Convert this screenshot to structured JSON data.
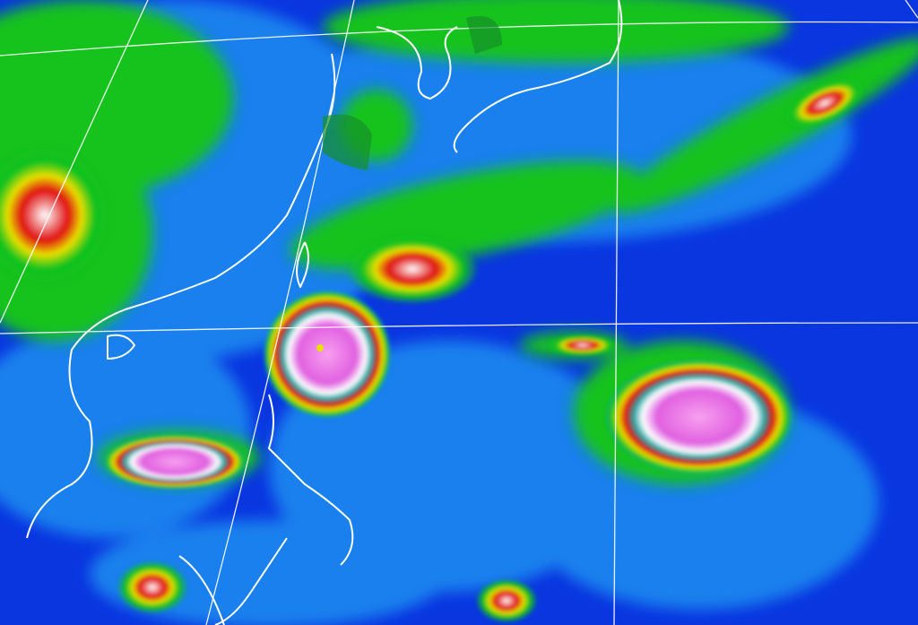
{
  "colors": {
    "ocean_clear": "#0a36e0",
    "low_cloud": "#1d8ef0",
    "mid_cloud": "#12c21e",
    "high_cloud": "#e8e000",
    "very_high_cloud": "#e01010",
    "cold_top": "#ffffff",
    "coldest_top": "#f070e8",
    "coastline": "#ffffff",
    "graticule": "#ffffff"
  }
}
